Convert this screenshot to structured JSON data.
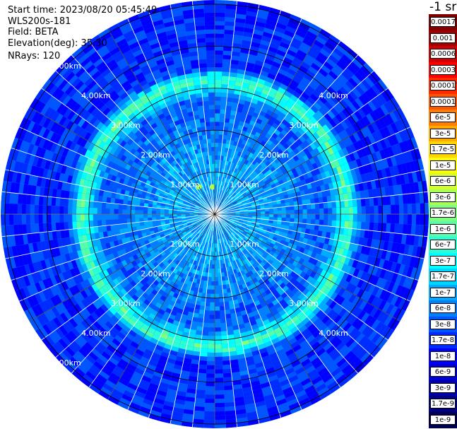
{
  "header": {
    "start_time": "Start time: 2023/08/20 05:45:49",
    "instrument": "WLS200s-181",
    "field": "Field: BETA",
    "elevation": "Elevation(deg): 35.30",
    "nrays": "NRays: 120"
  },
  "colorbar": {
    "unit": "-1 sr",
    "labels": [
      "0.0017",
      "0.001",
      "0.0006",
      "0.0003",
      "0.00017",
      "0.0001",
      "6e-5",
      "3e-5",
      "1.7e-5",
      "1e-5",
      "6e-6",
      "3e-6",
      "1.7e-6",
      "1e-6",
      "6e-7",
      "3e-7",
      "1.7e-7",
      "1e-7",
      "6e-8",
      "3e-8",
      "1.7e-8",
      "1e-8",
      "6e-9",
      "3e-9",
      "1.7e-9",
      "1e-9"
    ],
    "colors": [
      "#800000",
      "#a00000",
      "#d00000",
      "#ff0000",
      "#ff2a00",
      "#ff5500",
      "#ff8000",
      "#ffaa00",
      "#ffd500",
      "#ffff00",
      "#d4ff2b",
      "#aaff55",
      "#80ff80",
      "#55ffaa",
      "#2bffd5",
      "#00ffff",
      "#00d5ff",
      "#00aaff",
      "#0080ff",
      "#0055ff",
      "#002bff",
      "#0000ff",
      "#0000d4",
      "#0000aa",
      "#000080",
      "#000055"
    ]
  },
  "chart_data": {
    "type": "heatmap",
    "projection": "polar-ppi",
    "nrays": 120,
    "range_rings_km": [
      1,
      2,
      3,
      4,
      5
    ],
    "range_labels": [
      "1.00km",
      "2.00km",
      "3.00km",
      "4.00km",
      "5.00km"
    ],
    "max_range_km": 5.1,
    "radial_lines_deg": [
      0,
      30,
      60,
      90,
      120,
      150,
      180,
      210,
      240,
      270,
      300,
      330
    ],
    "radial_profile": [
      {
        "range_km": 0.0,
        "log10_beta": -7.1
      },
      {
        "range_km": 1.0,
        "log10_beta": -7.0
      },
      {
        "range_km": 2.0,
        "log10_beta": -7.3
      },
      {
        "range_km": 2.7,
        "log10_beta": -7.5
      },
      {
        "range_km": 3.2,
        "log10_beta": -6.0
      },
      {
        "range_km": 3.5,
        "log10_beta": -7.7
      },
      {
        "range_km": 5.1,
        "log10_beta": -7.8
      }
    ],
    "hotspots": [
      {
        "range_km": 0.75,
        "azimuth_deg": 330,
        "log10_beta": -5.4
      },
      {
        "range_km": 0.65,
        "azimuth_deg": 355,
        "log10_beta": -5.5
      }
    ]
  }
}
